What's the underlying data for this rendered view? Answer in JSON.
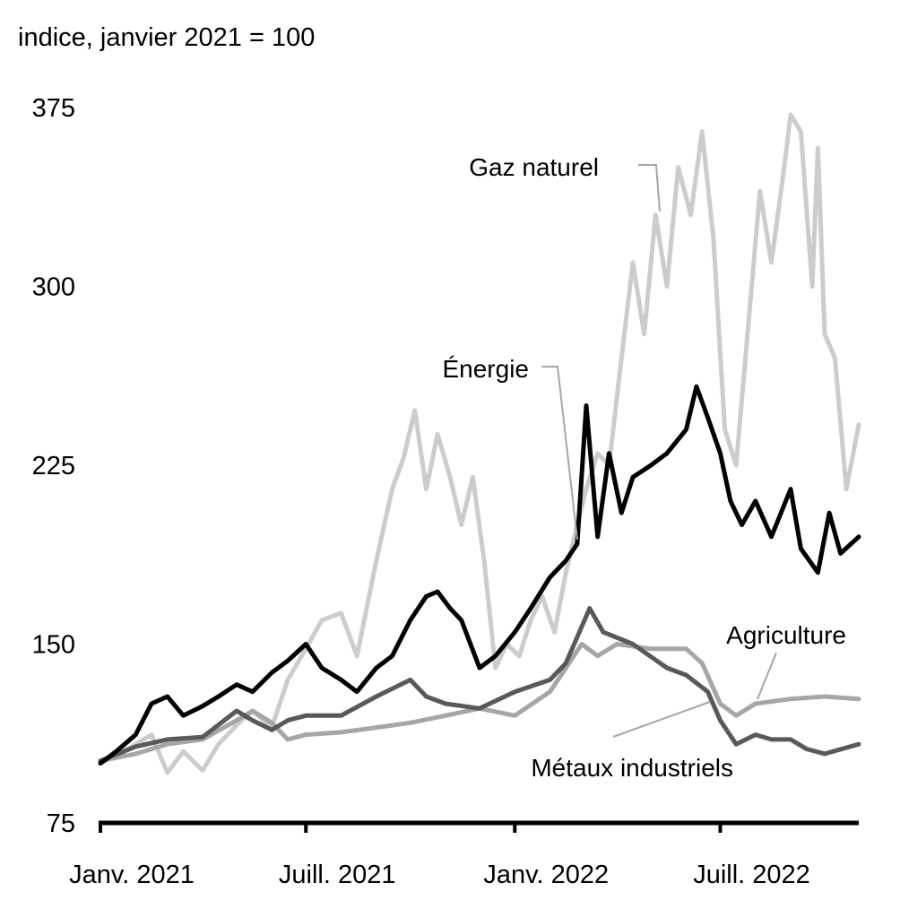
{
  "chart_data": {
    "type": "line",
    "ylabel": "indice, janvier 2021 = 100",
    "ylim": [
      75,
      375
    ],
    "yticks": [
      "75",
      "150",
      "225",
      "300",
      "375"
    ],
    "xlim": [
      "2021-01-01",
      "2022-10-31"
    ],
    "xticks": [
      {
        "label": "Janv. 2021",
        "date": "2021-01-01"
      },
      {
        "label": "Juill. 2021",
        "date": "2021-07-01"
      },
      {
        "label": "Janv. 2022",
        "date": "2022-01-01"
      },
      {
        "label": "Juill. 2022",
        "date": "2022-07-01"
      }
    ],
    "grid": false,
    "legend": "direct labels",
    "series": [
      {
        "name": "Gaz naturel",
        "color": "#cccccc",
        "points": [
          [
            "2021-01-01",
            100
          ],
          [
            "2021-01-15",
            103
          ],
          [
            "2021-02-01",
            108
          ],
          [
            "2021-02-15",
            112
          ],
          [
            "2021-03-01",
            96
          ],
          [
            "2021-03-15",
            105
          ],
          [
            "2021-04-01",
            97
          ],
          [
            "2021-04-15",
            108
          ],
          [
            "2021-05-01",
            116
          ],
          [
            "2021-05-15",
            122
          ],
          [
            "2021-06-01",
            115
          ],
          [
            "2021-06-15",
            135
          ],
          [
            "2021-07-01",
            148
          ],
          [
            "2021-07-15",
            160
          ],
          [
            "2021-08-01",
            163
          ],
          [
            "2021-08-15",
            145
          ],
          [
            "2021-09-01",
            185
          ],
          [
            "2021-09-15",
            215
          ],
          [
            "2021-09-25",
            228
          ],
          [
            "2021-10-05",
            248
          ],
          [
            "2021-10-15",
            215
          ],
          [
            "2021-10-25",
            238
          ],
          [
            "2021-11-05",
            220
          ],
          [
            "2021-11-15",
            200
          ],
          [
            "2021-11-25",
            220
          ],
          [
            "2021-12-05",
            185
          ],
          [
            "2021-12-15",
            140
          ],
          [
            "2021-12-25",
            150
          ],
          [
            "2022-01-05",
            145
          ],
          [
            "2022-01-15",
            160
          ],
          [
            "2022-01-25",
            170
          ],
          [
            "2022-02-05",
            155
          ],
          [
            "2022-02-15",
            180
          ],
          [
            "2022-02-25",
            200
          ],
          [
            "2022-03-05",
            215
          ],
          [
            "2022-03-15",
            230
          ],
          [
            "2022-03-25",
            225
          ],
          [
            "2022-04-05",
            270
          ],
          [
            "2022-04-15",
            310
          ],
          [
            "2022-04-25",
            280
          ],
          [
            "2022-05-05",
            330
          ],
          [
            "2022-05-15",
            300
          ],
          [
            "2022-05-25",
            350
          ],
          [
            "2022-06-05",
            330
          ],
          [
            "2022-06-15",
            365
          ],
          [
            "2022-06-25",
            320
          ],
          [
            "2022-07-05",
            240
          ],
          [
            "2022-07-15",
            225
          ],
          [
            "2022-07-25",
            280
          ],
          [
            "2022-08-05",
            340
          ],
          [
            "2022-08-15",
            310
          ],
          [
            "2022-08-25",
            345
          ],
          [
            "2022-09-01",
            372
          ],
          [
            "2022-09-10",
            365
          ],
          [
            "2022-09-20",
            300
          ],
          [
            "2022-09-25",
            358
          ],
          [
            "2022-10-01",
            280
          ],
          [
            "2022-10-10",
            270
          ],
          [
            "2022-10-20",
            215
          ],
          [
            "2022-10-31",
            242
          ]
        ]
      },
      {
        "name": "Énergie",
        "color": "#000000",
        "points": [
          [
            "2021-01-01",
            100
          ],
          [
            "2021-01-15",
            105
          ],
          [
            "2021-02-01",
            112
          ],
          [
            "2021-02-15",
            125
          ],
          [
            "2021-03-01",
            128
          ],
          [
            "2021-03-15",
            120
          ],
          [
            "2021-04-01",
            124
          ],
          [
            "2021-04-15",
            128
          ],
          [
            "2021-05-01",
            133
          ],
          [
            "2021-05-15",
            130
          ],
          [
            "2021-06-01",
            138
          ],
          [
            "2021-06-15",
            143
          ],
          [
            "2021-07-01",
            150
          ],
          [
            "2021-07-15",
            140
          ],
          [
            "2021-08-01",
            135
          ],
          [
            "2021-08-15",
            130
          ],
          [
            "2021-09-01",
            140
          ],
          [
            "2021-09-15",
            145
          ],
          [
            "2021-10-01",
            160
          ],
          [
            "2021-10-15",
            170
          ],
          [
            "2021-10-25",
            172
          ],
          [
            "2021-11-05",
            165
          ],
          [
            "2021-11-15",
            160
          ],
          [
            "2021-12-01",
            140
          ],
          [
            "2021-12-15",
            145
          ],
          [
            "2022-01-01",
            155
          ],
          [
            "2022-01-15",
            165
          ],
          [
            "2022-02-01",
            178
          ],
          [
            "2022-02-15",
            185
          ],
          [
            "2022-02-25",
            192
          ],
          [
            "2022-03-05",
            250
          ],
          [
            "2022-03-15",
            195
          ],
          [
            "2022-03-25",
            230
          ],
          [
            "2022-04-05",
            205
          ],
          [
            "2022-04-15",
            220
          ],
          [
            "2022-05-01",
            225
          ],
          [
            "2022-05-15",
            230
          ],
          [
            "2022-06-01",
            240
          ],
          [
            "2022-06-10",
            258
          ],
          [
            "2022-06-20",
            245
          ],
          [
            "2022-07-01",
            230
          ],
          [
            "2022-07-10",
            210
          ],
          [
            "2022-07-20",
            200
          ],
          [
            "2022-08-01",
            210
          ],
          [
            "2022-08-15",
            195
          ],
          [
            "2022-09-01",
            215
          ],
          [
            "2022-09-10",
            190
          ],
          [
            "2022-09-25",
            180
          ],
          [
            "2022-10-05",
            205
          ],
          [
            "2022-10-15",
            188
          ],
          [
            "2022-10-31",
            195
          ]
        ]
      },
      {
        "name": "Agriculture",
        "color": "#a6a6a6",
        "points": [
          [
            "2021-01-01",
            101
          ],
          [
            "2021-02-01",
            104
          ],
          [
            "2021-03-01",
            108
          ],
          [
            "2021-04-01",
            110
          ],
          [
            "2021-05-01",
            118
          ],
          [
            "2021-05-15",
            122
          ],
          [
            "2021-06-01",
            117
          ],
          [
            "2021-06-15",
            110
          ],
          [
            "2021-07-01",
            112
          ],
          [
            "2021-08-01",
            113
          ],
          [
            "2021-09-01",
            115
          ],
          [
            "2021-10-01",
            117
          ],
          [
            "2021-11-01",
            120
          ],
          [
            "2021-12-01",
            123
          ],
          [
            "2022-01-01",
            120
          ],
          [
            "2022-02-01",
            130
          ],
          [
            "2022-02-15",
            140
          ],
          [
            "2022-03-01",
            150
          ],
          [
            "2022-03-15",
            145
          ],
          [
            "2022-04-01",
            150
          ],
          [
            "2022-05-01",
            148
          ],
          [
            "2022-06-01",
            148
          ],
          [
            "2022-06-15",
            142
          ],
          [
            "2022-07-01",
            125
          ],
          [
            "2022-07-15",
            120
          ],
          [
            "2022-08-01",
            125
          ],
          [
            "2022-09-01",
            127
          ],
          [
            "2022-10-01",
            128
          ],
          [
            "2022-10-31",
            127
          ]
        ]
      },
      {
        "name": "Métaux industriels",
        "color": "#595959",
        "points": [
          [
            "2021-01-01",
            101
          ],
          [
            "2021-02-01",
            107
          ],
          [
            "2021-03-01",
            110
          ],
          [
            "2021-04-01",
            111
          ],
          [
            "2021-05-01",
            122
          ],
          [
            "2021-05-15",
            118
          ],
          [
            "2021-06-01",
            114
          ],
          [
            "2021-06-15",
            118
          ],
          [
            "2021-07-01",
            120
          ],
          [
            "2021-08-01",
            120
          ],
          [
            "2021-09-01",
            128
          ],
          [
            "2021-10-01",
            135
          ],
          [
            "2021-10-15",
            128
          ],
          [
            "2021-11-01",
            125
          ],
          [
            "2021-12-01",
            123
          ],
          [
            "2022-01-01",
            130
          ],
          [
            "2022-02-01",
            135
          ],
          [
            "2022-02-15",
            142
          ],
          [
            "2022-03-08",
            165
          ],
          [
            "2022-03-20",
            155
          ],
          [
            "2022-04-15",
            150
          ],
          [
            "2022-05-15",
            140
          ],
          [
            "2022-06-01",
            137
          ],
          [
            "2022-06-20",
            130
          ],
          [
            "2022-07-01",
            118
          ],
          [
            "2022-07-15",
            108
          ],
          [
            "2022-08-01",
            112
          ],
          [
            "2022-08-15",
            110
          ],
          [
            "2022-09-01",
            110
          ],
          [
            "2022-09-15",
            106
          ],
          [
            "2022-10-01",
            104
          ],
          [
            "2022-10-31",
            108
          ]
        ]
      }
    ]
  }
}
